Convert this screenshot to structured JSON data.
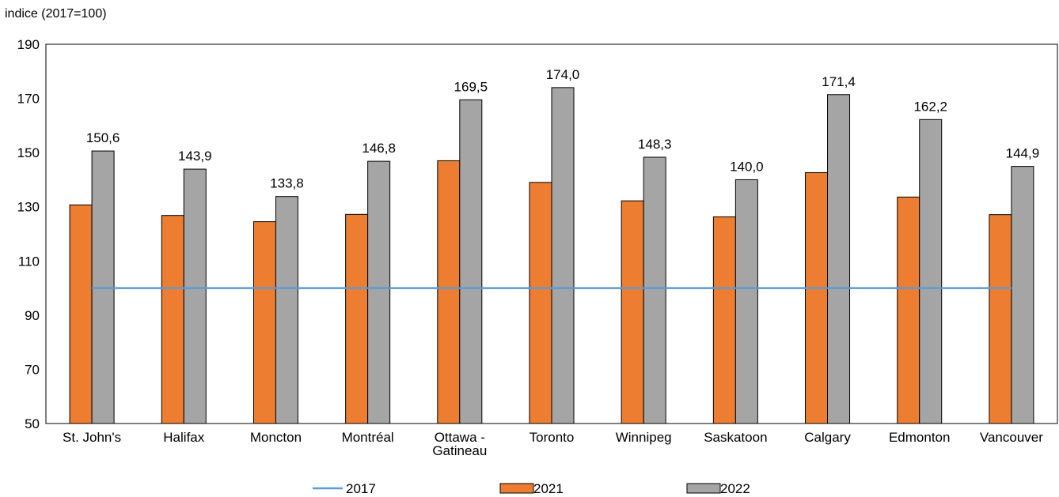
{
  "chart_data": {
    "type": "bar",
    "ylabel": "indice (2017=100)",
    "ylim": [
      50,
      190
    ],
    "yticks": [
      50,
      70,
      90,
      110,
      130,
      150,
      170,
      190
    ],
    "categories": [
      [
        "St. John's"
      ],
      [
        "Halifax"
      ],
      [
        "Moncton"
      ],
      [
        "Montréal"
      ],
      [
        "Ottawa -",
        "Gatineau"
      ],
      [
        "Toronto"
      ],
      [
        "Winnipeg"
      ],
      [
        "Saskatoon"
      ],
      [
        "Calgary"
      ],
      [
        "Edmonton"
      ],
      [
        "Vancouver"
      ]
    ],
    "series": [
      {
        "name": "2017",
        "kind": "line",
        "color": "#5B9BD5",
        "values": [
          100,
          100,
          100,
          100,
          100,
          100,
          100,
          100,
          100,
          100,
          100
        ]
      },
      {
        "name": "2021",
        "kind": "bar",
        "color": "#ED7D31",
        "values": [
          130.7,
          126.8,
          124.5,
          127.2,
          147.0,
          139.0,
          132.2,
          126.3,
          142.6,
          133.6,
          127.1
        ]
      },
      {
        "name": "2022",
        "kind": "bar",
        "color": "#A5A5A5",
        "values": [
          150.6,
          143.9,
          133.8,
          146.8,
          169.5,
          174.0,
          148.3,
          140.0,
          171.4,
          162.2,
          144.9
        ],
        "data_labels": [
          "150,6",
          "143,9",
          "133,8",
          "146,8",
          "169,5",
          "174,0",
          "148,3",
          "140,0",
          "171,4",
          "162,2",
          "144,9"
        ]
      }
    ],
    "legend_position": "bottom",
    "grid": false
  }
}
